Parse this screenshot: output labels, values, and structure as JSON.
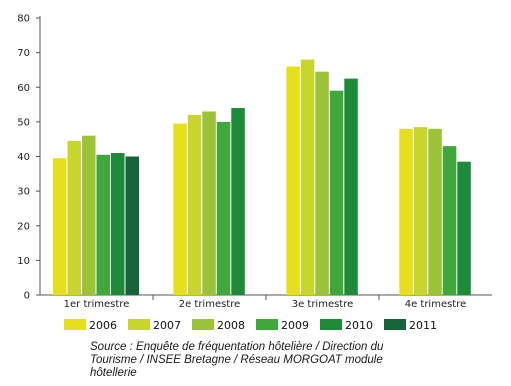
{
  "chart_data": {
    "type": "bar",
    "categories": [
      "1er trimestre",
      "2e trimestre",
      "3e trimestre",
      "4e trimestre"
    ],
    "series": [
      {
        "name": "2006",
        "color": "#e6e01c",
        "values": [
          39.5,
          49.5,
          66.0,
          48.0
        ]
      },
      {
        "name": "2007",
        "color": "#c8d52a",
        "values": [
          44.5,
          52.0,
          68.0,
          48.5
        ]
      },
      {
        "name": "2008",
        "color": "#9cc238",
        "values": [
          46.0,
          53.0,
          64.5,
          48.0
        ]
      },
      {
        "name": "2009",
        "color": "#3fa73c",
        "values": [
          40.5,
          50.0,
          59.0,
          43.0
        ]
      },
      {
        "name": "2010",
        "color": "#1f8a3a",
        "values": [
          41.0,
          54.0,
          62.5,
          38.5
        ]
      },
      {
        "name": "2011",
        "color": "#17633a",
        "values": [
          40.0,
          null,
          null,
          null
        ]
      }
    ],
    "ylim": [
      0,
      80
    ],
    "yticks": [
      0,
      10,
      20,
      30,
      40,
      50,
      60,
      70,
      80
    ],
    "grid": false,
    "legend_position": "bottom",
    "title": "",
    "xlabel": "",
    "ylabel": ""
  },
  "source_note": "Source : Enquête de fréquentation hôtelière / Direction du\nTourisme / INSEE Bretagne / Réseau MORGOAT     module\nhôtellerie"
}
